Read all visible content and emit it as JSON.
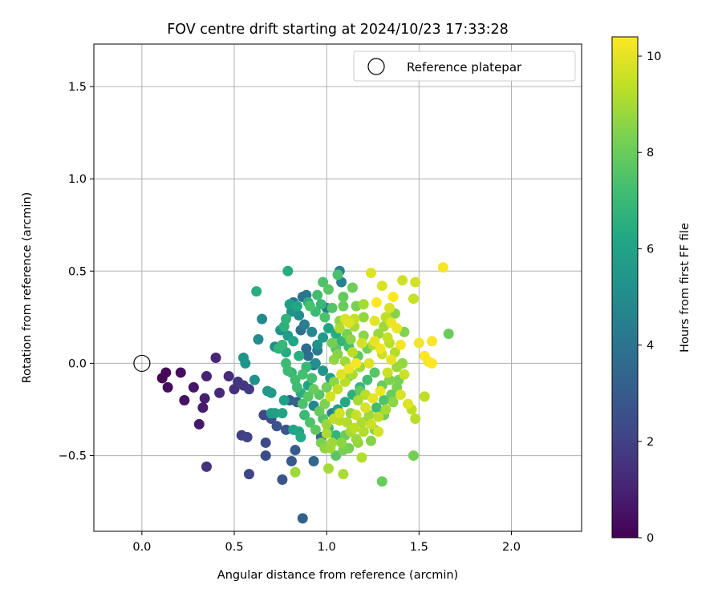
{
  "chart_data": {
    "type": "scatter",
    "title": "FOV centre drift starting at 2024/10/23 17:33:28",
    "xlabel": "Angular distance from reference (arcmin)",
    "ylabel": "Rotation from reference (arcmin)",
    "xlim": [
      -0.26,
      2.38
    ],
    "ylim": [
      -0.91,
      1.73
    ],
    "xticks": [
      "0.0",
      "0.5",
      "1.0",
      "1.5",
      "2.0"
    ],
    "xtick_values": [
      0.0,
      0.5,
      1.0,
      1.5,
      2.0
    ],
    "yticks": [
      "1.5",
      "1.0",
      "0.5",
      "0.0",
      "−0.5"
    ],
    "ytick_values": [
      1.5,
      1.0,
      0.5,
      0.0,
      -0.5
    ],
    "grid": true,
    "legend": {
      "position": "top-right",
      "label": "Reference platepar",
      "marker": "open-circle"
    },
    "reference_point": {
      "x": 0.0,
      "y": 0.0
    },
    "colorbar": {
      "label": "Hours from first FF file",
      "colormap": "viridis",
      "range": [
        0,
        10.4
      ],
      "ticks": [
        "0",
        "2",
        "4",
        "6",
        "8",
        "10"
      ],
      "tick_values": [
        0,
        2,
        4,
        6,
        8,
        10
      ]
    },
    "points": [
      {
        "x": 0.11,
        "y": -0.08,
        "h": 0.1
      },
      {
        "x": 0.13,
        "y": -0.05,
        "h": 0.2
      },
      {
        "x": 0.14,
        "y": -0.13,
        "h": 0.3
      },
      {
        "x": 0.21,
        "y": -0.05,
        "h": 0.4
      },
      {
        "x": 0.23,
        "y": -0.2,
        "h": 0.5
      },
      {
        "x": 0.28,
        "y": -0.13,
        "h": 0.6
      },
      {
        "x": 0.31,
        "y": -0.33,
        "h": 0.7
      },
      {
        "x": 0.33,
        "y": -0.24,
        "h": 0.8
      },
      {
        "x": 0.34,
        "y": -0.19,
        "h": 0.9
      },
      {
        "x": 0.35,
        "y": -0.07,
        "h": 1.0
      },
      {
        "x": 0.4,
        "y": 0.03,
        "h": 1.1
      },
      {
        "x": 0.42,
        "y": -0.16,
        "h": 1.2
      },
      {
        "x": 0.47,
        "y": -0.07,
        "h": 1.3
      },
      {
        "x": 0.5,
        "y": -0.14,
        "h": 1.4
      },
      {
        "x": 0.35,
        "y": -0.56,
        "h": 1.5
      },
      {
        "x": 0.52,
        "y": -0.1,
        "h": 1.6
      },
      {
        "x": 0.55,
        "y": -0.12,
        "h": 1.7
      },
      {
        "x": 0.58,
        "y": -0.14,
        "h": 1.8
      },
      {
        "x": 0.54,
        "y": -0.39,
        "h": 1.9
      },
      {
        "x": 0.57,
        "y": -0.4,
        "h": 2.0
      },
      {
        "x": 0.58,
        "y": -0.6,
        "h": 2.1
      },
      {
        "x": 0.66,
        "y": -0.28,
        "h": 2.2
      },
      {
        "x": 0.67,
        "y": -0.43,
        "h": 2.3
      },
      {
        "x": 0.67,
        "y": -0.5,
        "h": 2.4
      },
      {
        "x": 0.7,
        "y": -0.3,
        "h": 2.5
      },
      {
        "x": 0.73,
        "y": -0.34,
        "h": 2.6
      },
      {
        "x": 0.76,
        "y": -0.63,
        "h": 2.7
      },
      {
        "x": 0.78,
        "y": -0.36,
        "h": 2.8
      },
      {
        "x": 0.81,
        "y": -0.53,
        "h": 2.9
      },
      {
        "x": 0.83,
        "y": -0.47,
        "h": 3.0
      },
      {
        "x": 0.8,
        "y": -0.2,
        "h": 3.1
      },
      {
        "x": 0.84,
        "y": -0.21,
        "h": 3.2
      },
      {
        "x": 0.87,
        "y": -0.84,
        "h": 3.3
      },
      {
        "x": 0.93,
        "y": -0.53,
        "h": 3.4
      },
      {
        "x": 0.97,
        "y": -0.4,
        "h": 3.5
      },
      {
        "x": 0.89,
        "y": 0.08,
        "h": 3.6
      },
      {
        "x": 0.9,
        "y": 0.04,
        "h": 3.7
      },
      {
        "x": 0.86,
        "y": 0.18,
        "h": 3.8
      },
      {
        "x": 0.82,
        "y": 0.33,
        "h": 3.9
      },
      {
        "x": 0.87,
        "y": 0.36,
        "h": 4.0
      },
      {
        "x": 0.89,
        "y": 0.37,
        "h": 4.1
      },
      {
        "x": 0.93,
        "y": -0.01,
        "h": 4.2
      },
      {
        "x": 0.95,
        "y": 0.07,
        "h": 4.3
      },
      {
        "x": 1.0,
        "y": 0.3,
        "h": 4.4
      },
      {
        "x": 1.07,
        "y": 0.5,
        "h": 4.5
      },
      {
        "x": 1.08,
        "y": 0.44,
        "h": 4.6
      },
      {
        "x": 1.03,
        "y": -0.27,
        "h": 4.7
      },
      {
        "x": 0.93,
        "y": -0.23,
        "h": 4.8
      },
      {
        "x": 0.65,
        "y": 0.24,
        "h": 4.9
      },
      {
        "x": 0.63,
        "y": 0.13,
        "h": 5.0
      },
      {
        "x": 0.72,
        "y": 0.09,
        "h": 5.1
      },
      {
        "x": 0.61,
        "y": -0.09,
        "h": 5.2
      },
      {
        "x": 0.55,
        "y": 0.03,
        "h": 5.3
      },
      {
        "x": 0.56,
        "y": 0.0,
        "h": 5.4
      },
      {
        "x": 0.68,
        "y": -0.15,
        "h": 5.5
      },
      {
        "x": 0.7,
        "y": -0.16,
        "h": 5.6
      },
      {
        "x": 0.7,
        "y": -0.27,
        "h": 5.7
      },
      {
        "x": 0.72,
        "y": -0.27,
        "h": 5.8
      },
      {
        "x": 0.77,
        "y": -0.2,
        "h": 5.9
      },
      {
        "x": 0.76,
        "y": -0.27,
        "h": 6.0
      },
      {
        "x": 0.82,
        "y": -0.36,
        "h": 6.1
      },
      {
        "x": 0.85,
        "y": -0.37,
        "h": 6.2
      },
      {
        "x": 0.86,
        "y": -0.4,
        "h": 6.3
      },
      {
        "x": 0.79,
        "y": 0.5,
        "h": 6.4
      },
      {
        "x": 0.62,
        "y": 0.39,
        "h": 6.5
      },
      {
        "x": 0.77,
        "y": 0.2,
        "h": 6.6
      },
      {
        "x": 0.78,
        "y": 0.24,
        "h": 6.7
      },
      {
        "x": 0.74,
        "y": 0.08,
        "h": 6.8
      },
      {
        "x": 0.76,
        "y": 0.1,
        "h": 6.9
      },
      {
        "x": 0.78,
        "y": 0.0,
        "h": 7.0
      },
      {
        "x": 0.79,
        "y": -0.04,
        "h": 7.1
      },
      {
        "x": 0.83,
        "y": -0.09,
        "h": 7.2
      },
      {
        "x": 0.87,
        "y": -0.06,
        "h": 7.3
      },
      {
        "x": 0.91,
        "y": 0.31,
        "h": 7.4
      },
      {
        "x": 0.98,
        "y": 0.44,
        "h": 7.5
      },
      {
        "x": 1.05,
        "y": 0.08,
        "h": 7.6
      },
      {
        "x": 1.12,
        "y": -0.07,
        "h": 7.7
      },
      {
        "x": 1.18,
        "y": -0.15,
        "h": 7.8
      },
      {
        "x": 1.22,
        "y": -0.31,
        "h": 7.9
      },
      {
        "x": 1.3,
        "y": -0.64,
        "h": 8.0
      },
      {
        "x": 1.31,
        "y": -0.28,
        "h": 8.1
      },
      {
        "x": 1.47,
        "y": -0.5,
        "h": 8.2
      },
      {
        "x": 1.38,
        "y": -0.13,
        "h": 8.3
      },
      {
        "x": 1.42,
        "y": 0.17,
        "h": 8.4
      },
      {
        "x": 1.37,
        "y": 0.27,
        "h": 8.5
      },
      {
        "x": 1.07,
        "y": 0.23,
        "h": 8.6
      },
      {
        "x": 1.04,
        "y": 0.02,
        "h": 8.7
      },
      {
        "x": 1.0,
        "y": -0.33,
        "h": 8.8
      },
      {
        "x": 0.83,
        "y": -0.59,
        "h": 8.9
      },
      {
        "x": 1.01,
        "y": -0.57,
        "h": 9.0
      },
      {
        "x": 1.09,
        "y": -0.6,
        "h": 9.1
      },
      {
        "x": 1.19,
        "y": -0.51,
        "h": 9.2
      },
      {
        "x": 1.48,
        "y": -0.3,
        "h": 9.3
      },
      {
        "x": 1.53,
        "y": -0.18,
        "h": 9.4
      },
      {
        "x": 1.47,
        "y": 0.35,
        "h": 9.5
      },
      {
        "x": 1.41,
        "y": 0.45,
        "h": 9.6
      },
      {
        "x": 1.48,
        "y": 0.44,
        "h": 9.7
      },
      {
        "x": 1.3,
        "y": 0.42,
        "h": 9.8
      },
      {
        "x": 1.24,
        "y": 0.49,
        "h": 9.9
      },
      {
        "x": 1.26,
        "y": 0.23,
        "h": 10.0
      },
      {
        "x": 1.35,
        "y": 0.22,
        "h": 10.1
      },
      {
        "x": 1.5,
        "y": 0.11,
        "h": 10.2
      },
      {
        "x": 1.57,
        "y": 0.12,
        "h": 10.3
      },
      {
        "x": 1.63,
        "y": 0.52,
        "h": 10.3
      },
      {
        "x": 1.66,
        "y": 0.16,
        "h": 8.0
      },
      {
        "x": 1.53,
        "y": 0.04,
        "h": 10.4
      },
      {
        "x": 1.57,
        "y": 0.0,
        "h": 10.4
      },
      {
        "x": 1.55,
        "y": 0.01,
        "h": 10.2
      },
      {
        "x": 1.36,
        "y": 0.36,
        "h": 10.4
      },
      {
        "x": 1.27,
        "y": 0.33,
        "h": 10.4
      },
      {
        "x": 1.1,
        "y": 0.24,
        "h": 9.8
      },
      {
        "x": 1.15,
        "y": 0.2,
        "h": 9.0
      },
      {
        "x": 1.2,
        "y": 0.15,
        "h": 8.6
      },
      {
        "x": 1.25,
        "y": 0.1,
        "h": 9.2
      },
      {
        "x": 1.3,
        "y": 0.05,
        "h": 9.6
      },
      {
        "x": 1.35,
        "y": 0.02,
        "h": 10.0
      },
      {
        "x": 1.4,
        "y": 0.1,
        "h": 10.2
      },
      {
        "x": 1.38,
        "y": 0.19,
        "h": 10.1
      },
      {
        "x": 1.33,
        "y": 0.14,
        "h": 9.5
      },
      {
        "x": 1.28,
        "y": 0.16,
        "h": 8.8
      },
      {
        "x": 1.22,
        "y": 0.08,
        "h": 8.2
      },
      {
        "x": 1.17,
        "y": 0.04,
        "h": 7.8
      },
      {
        "x": 1.12,
        "y": 0.09,
        "h": 7.2
      },
      {
        "x": 1.08,
        "y": 0.12,
        "h": 6.8
      },
      {
        "x": 1.05,
        "y": 0.16,
        "h": 6.4
      },
      {
        "x": 1.01,
        "y": 0.19,
        "h": 6.0
      },
      {
        "x": 0.98,
        "y": 0.14,
        "h": 5.6
      },
      {
        "x": 0.95,
        "y": 0.1,
        "h": 5.2
      },
      {
        "x": 0.92,
        "y": 0.17,
        "h": 4.8
      },
      {
        "x": 0.88,
        "y": 0.21,
        "h": 4.4
      },
      {
        "x": 0.85,
        "y": 0.26,
        "h": 5.0
      },
      {
        "x": 0.81,
        "y": 0.28,
        "h": 5.4
      },
      {
        "x": 0.8,
        "y": 0.32,
        "h": 5.8
      },
      {
        "x": 0.84,
        "y": 0.31,
        "h": 6.2
      },
      {
        "x": 0.9,
        "y": 0.33,
        "h": 6.6
      },
      {
        "x": 0.94,
        "y": 0.28,
        "h": 7.0
      },
      {
        "x": 0.99,
        "y": 0.25,
        "h": 7.4
      },
      {
        "x": 1.03,
        "y": 0.3,
        "h": 7.6
      },
      {
        "x": 1.09,
        "y": 0.36,
        "h": 7.9
      },
      {
        "x": 1.14,
        "y": 0.41,
        "h": 8.1
      },
      {
        "x": 1.16,
        "y": 0.31,
        "h": 8.3
      },
      {
        "x": 1.2,
        "y": 0.25,
        "h": 8.7
      },
      {
        "x": 1.18,
        "y": -0.02,
        "h": 8.9
      },
      {
        "x": 1.14,
        "y": -0.06,
        "h": 9.1
      },
      {
        "x": 1.1,
        "y": -0.1,
        "h": 9.3
      },
      {
        "x": 1.06,
        "y": -0.14,
        "h": 9.5
      },
      {
        "x": 1.02,
        "y": -0.18,
        "h": 9.7
      },
      {
        "x": 0.99,
        "y": -0.22,
        "h": 8.4
      },
      {
        "x": 0.96,
        "y": -0.26,
        "h": 8.0
      },
      {
        "x": 0.98,
        "y": -0.3,
        "h": 7.6
      },
      {
        "x": 1.01,
        "y": -0.35,
        "h": 7.2
      },
      {
        "x": 1.05,
        "y": -0.39,
        "h": 6.8
      },
      {
        "x": 1.08,
        "y": -0.43,
        "h": 8.6
      },
      {
        "x": 1.12,
        "y": -0.46,
        "h": 8.2
      },
      {
        "x": 1.16,
        "y": -0.41,
        "h": 8.8
      },
      {
        "x": 1.2,
        "y": -0.37,
        "h": 9.2
      },
      {
        "x": 1.24,
        "y": -0.33,
        "h": 9.6
      },
      {
        "x": 1.28,
        "y": -0.29,
        "h": 9.4
      },
      {
        "x": 1.32,
        "y": -0.25,
        "h": 9.0
      },
      {
        "x": 1.36,
        "y": -0.21,
        "h": 8.6
      },
      {
        "x": 1.4,
        "y": -0.17,
        "h": 9.8
      },
      {
        "x": 1.44,
        "y": -0.22,
        "h": 9.9
      },
      {
        "x": 1.46,
        "y": -0.25,
        "h": 9.4
      },
      {
        "x": 1.42,
        "y": -0.06,
        "h": 9.6
      },
      {
        "x": 1.38,
        "y": -0.02,
        "h": 8.8
      },
      {
        "x": 1.34,
        "y": -0.09,
        "h": 8.4
      },
      {
        "x": 1.3,
        "y": -0.12,
        "h": 8.0
      },
      {
        "x": 1.26,
        "y": -0.05,
        "h": 7.6
      },
      {
        "x": 1.22,
        "y": -0.09,
        "h": 7.2
      },
      {
        "x": 1.18,
        "y": -0.13,
        "h": 6.9
      },
      {
        "x": 1.14,
        "y": -0.17,
        "h": 6.6
      },
      {
        "x": 1.1,
        "y": -0.21,
        "h": 6.3
      },
      {
        "x": 1.06,
        "y": -0.25,
        "h": 6.0
      },
      {
        "x": 1.02,
        "y": -0.08,
        "h": 5.7
      },
      {
        "x": 0.98,
        "y": -0.04,
        "h": 5.4
      },
      {
        "x": 0.94,
        "y": 0.0,
        "h": 5.1
      },
      {
        "x": 0.9,
        "y": -0.12,
        "h": 6.0
      },
      {
        "x": 0.86,
        "y": -0.16,
        "h": 6.5
      },
      {
        "x": 0.88,
        "y": -0.28,
        "h": 7.0
      },
      {
        "x": 0.91,
        "y": -0.32,
        "h": 7.5
      },
      {
        "x": 0.94,
        "y": -0.36,
        "h": 7.8
      },
      {
        "x": 0.97,
        "y": -0.43,
        "h": 8.3
      },
      {
        "x": 1.02,
        "y": -0.46,
        "h": 8.9
      },
      {
        "x": 1.11,
        "y": -0.32,
        "h": 9.2
      },
      {
        "x": 1.16,
        "y": -0.28,
        "h": 9.5
      },
      {
        "x": 1.21,
        "y": -0.24,
        "h": 9.8
      },
      {
        "x": 1.25,
        "y": -0.19,
        "h": 10.0
      },
      {
        "x": 1.29,
        "y": -0.15,
        "h": 10.1
      },
      {
        "x": 1.24,
        "y": -0.42,
        "h": 8.5
      },
      {
        "x": 1.17,
        "y": -0.43,
        "h": 8.7
      },
      {
        "x": 1.13,
        "y": -0.37,
        "h": 9.0
      },
      {
        "x": 1.07,
        "y": -0.31,
        "h": 9.3
      },
      {
        "x": 1.03,
        "y": 0.11,
        "h": 8.2
      },
      {
        "x": 1.06,
        "y": 0.05,
        "h": 8.5
      },
      {
        "x": 1.1,
        "y": 0.01,
        "h": 8.9
      },
      {
        "x": 1.14,
        "y": 0.06,
        "h": 9.3
      },
      {
        "x": 1.19,
        "y": 0.11,
        "h": 9.7
      },
      {
        "x": 1.23,
        "y": 0.0,
        "h": 9.9
      },
      {
        "x": 1.16,
        "y": 0.0,
        "h": 10.3
      },
      {
        "x": 1.12,
        "y": -0.03,
        "h": 10.1
      },
      {
        "x": 1.08,
        "y": -0.06,
        "h": 9.9
      },
      {
        "x": 1.04,
        "y": -0.1,
        "h": 8.6
      },
      {
        "x": 1.0,
        "y": -0.13,
        "h": 8.1
      },
      {
        "x": 0.96,
        "y": -0.17,
        "h": 7.7
      },
      {
        "x": 0.92,
        "y": -0.08,
        "h": 7.3
      },
      {
        "x": 0.89,
        "y": -0.02,
        "h": 6.9
      },
      {
        "x": 0.85,
        "y": 0.04,
        "h": 6.5
      },
      {
        "x": 0.82,
        "y": 0.12,
        "h": 6.1
      },
      {
        "x": 0.79,
        "y": 0.15,
        "h": 5.7
      },
      {
        "x": 0.75,
        "y": 0.18,
        "h": 5.3
      },
      {
        "x": 0.78,
        "y": 0.06,
        "h": 6.4
      },
      {
        "x": 0.81,
        "y": -0.05,
        "h": 6.8
      },
      {
        "x": 0.84,
        "y": -0.13,
        "h": 7.1
      },
      {
        "x": 0.87,
        "y": -0.22,
        "h": 7.4
      },
      {
        "x": 0.9,
        "y": -0.18,
        "h": 7.7
      },
      {
        "x": 0.93,
        "y": -0.14,
        "h": 8.0
      },
      {
        "x": 1.09,
        "y": 0.31,
        "h": 8.0
      },
      {
        "x": 1.11,
        "y": 0.16,
        "h": 8.3
      },
      {
        "x": 1.13,
        "y": 0.13,
        "h": 8.6
      },
      {
        "x": 1.2,
        "y": 0.32,
        "h": 9.0
      },
      {
        "x": 1.32,
        "y": 0.25,
        "h": 9.4
      },
      {
        "x": 1.34,
        "y": 0.3,
        "h": 9.8
      },
      {
        "x": 1.29,
        "y": 0.08,
        "h": 10.2
      },
      {
        "x": 1.26,
        "y": 0.12,
        "h": 10.0
      },
      {
        "x": 1.33,
        "y": -0.05,
        "h": 9.6
      },
      {
        "x": 1.37,
        "y": 0.06,
        "h": 9.2
      },
      {
        "x": 1.41,
        "y": 0.0,
        "h": 8.7
      },
      {
        "x": 1.39,
        "y": -0.09,
        "h": 8.3
      },
      {
        "x": 1.35,
        "y": -0.17,
        "h": 8.0
      },
      {
        "x": 1.31,
        "y": -0.2,
        "h": 7.5
      },
      {
        "x": 1.27,
        "y": -0.24,
        "h": 7.1
      },
      {
        "x": 1.23,
        "y": -0.28,
        "h": 8.9
      },
      {
        "x": 1.19,
        "y": -0.32,
        "h": 9.1
      },
      {
        "x": 1.15,
        "y": -0.35,
        "h": 9.4
      },
      {
        "x": 1.09,
        "y": -0.47,
        "h": 8.3
      },
      {
        "x": 1.05,
        "y": -0.5,
        "h": 7.7
      },
      {
        "x": 1.03,
        "y": -0.43,
        "h": 8.9
      },
      {
        "x": 0.99,
        "y": -0.46,
        "h": 8.6
      },
      {
        "x": 1.0,
        "y": -0.38,
        "h": 9.1
      },
      {
        "x": 1.04,
        "y": -0.3,
        "h": 9.4
      },
      {
        "x": 1.07,
        "y": -0.27,
        "h": 9.7
      },
      {
        "x": 1.1,
        "y": -0.39,
        "h": 8.0
      },
      {
        "x": 1.13,
        "y": -0.27,
        "h": 8.7
      },
      {
        "x": 1.17,
        "y": -0.2,
        "h": 9.0
      },
      {
        "x": 1.21,
        "y": -0.17,
        "h": 9.3
      },
      {
        "x": 1.26,
        "y": -0.36,
        "h": 8.4
      },
      {
        "x": 1.28,
        "y": -0.37,
        "h": 9.7
      },
      {
        "x": 0.95,
        "y": 0.37,
        "h": 7.2
      },
      {
        "x": 0.97,
        "y": 0.32,
        "h": 6.9
      },
      {
        "x": 1.01,
        "y": 0.4,
        "h": 7.7
      },
      {
        "x": 1.06,
        "y": 0.48,
        "h": 7.4
      },
      {
        "x": 1.15,
        "y": 0.24,
        "h": 9.5
      },
      {
        "x": 1.07,
        "y": 0.19,
        "h": 9.1
      },
      {
        "x": 1.12,
        "y": 0.22,
        "h": 9.9
      },
      {
        "x": 1.34,
        "y": 0.11,
        "h": 9.3
      },
      {
        "x": 1.31,
        "y": 0.2,
        "h": 8.9
      }
    ]
  }
}
